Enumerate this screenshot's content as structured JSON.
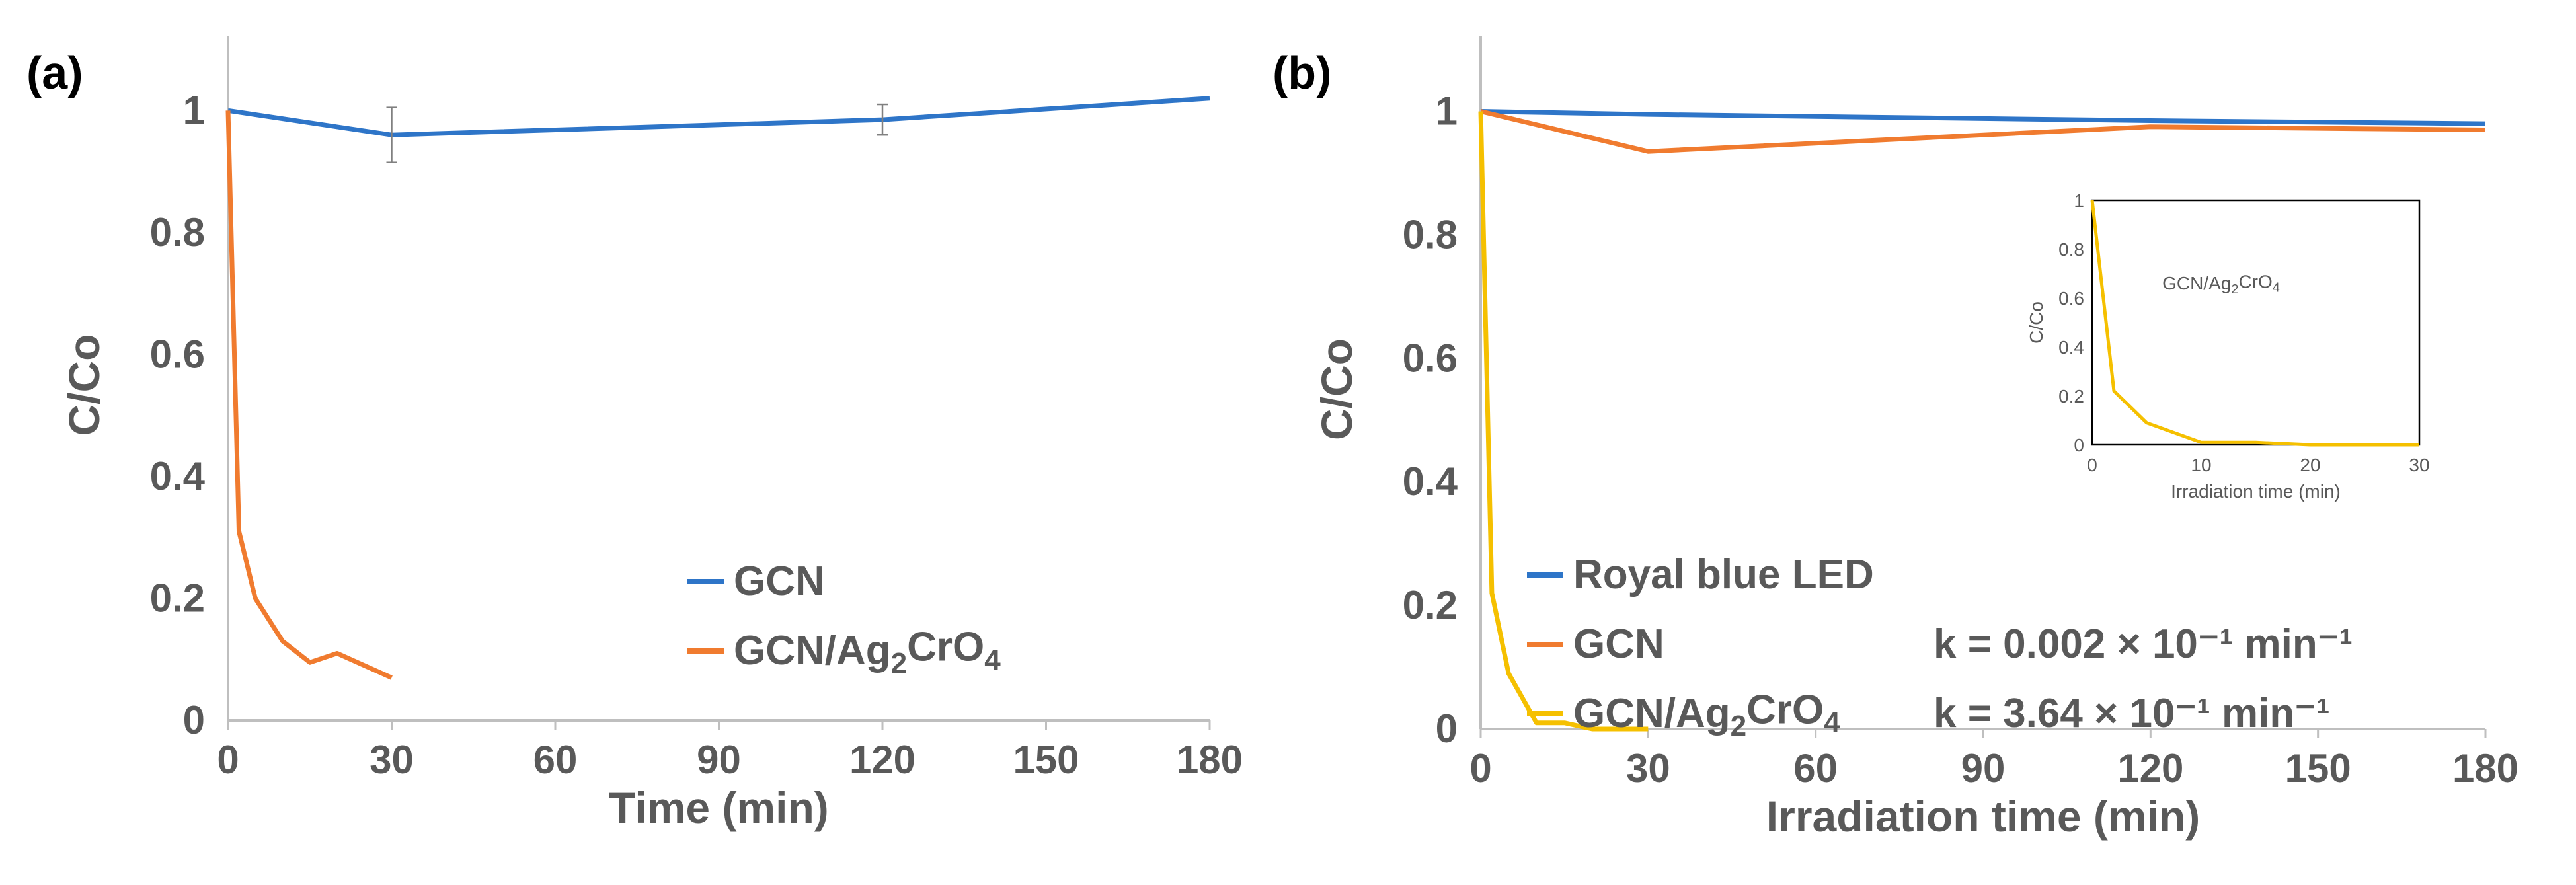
{
  "panels": {
    "a": {
      "label": "(a)"
    },
    "b": {
      "label": "(b)"
    }
  },
  "chart_data": [
    {
      "id": "a",
      "type": "line",
      "title": "",
      "xlabel": "Time (min)",
      "ylabel": "C/Co",
      "xlim": [
        0,
        180
      ],
      "ylim": [
        0,
        1.1
      ],
      "xticks": [
        0,
        30,
        60,
        90,
        120,
        150,
        180
      ],
      "yticks": [
        0,
        0.2,
        0.4,
        0.6,
        0.8,
        1
      ],
      "ytick_labels": [
        "0",
        "0.2",
        "0.4",
        "0.6",
        "0.8",
        "1"
      ],
      "grid": false,
      "legend_position": "bottom-right",
      "series": [
        {
          "name": "GCN",
          "color": "#2E75C8",
          "x": [
            0,
            30,
            120,
            180
          ],
          "y": [
            1.0,
            0.96,
            0.985,
            1.02
          ],
          "error": [
            0,
            0.045,
            0.025,
            0
          ]
        },
        {
          "name": "GCN/Ag2CrO4",
          "name_parts": [
            "GCN/Ag",
            "2",
            "CrO",
            "4"
          ],
          "color": "#F07B2F",
          "x": [
            0,
            2,
            5,
            10,
            15,
            20,
            30
          ],
          "y": [
            1.0,
            0.31,
            0.2,
            0.13,
            0.095,
            0.11,
            0.07
          ]
        }
      ]
    },
    {
      "id": "b",
      "type": "line",
      "title": "",
      "xlabel": "Irradiation time (min)",
      "ylabel": "C/Co",
      "xlim": [
        0,
        180
      ],
      "ylim": [
        0,
        1.1
      ],
      "xticks": [
        0,
        30,
        60,
        90,
        120,
        150,
        180
      ],
      "yticks": [
        0,
        0.2,
        0.4,
        0.6,
        0.8,
        1
      ],
      "ytick_labels": [
        "0",
        "0.2",
        "0.4",
        "0.6",
        "0.8",
        "1"
      ],
      "grid": false,
      "legend_position": "bottom-left",
      "series": [
        {
          "name": "Royal blue LED",
          "color": "#2E75C8",
          "x": [
            0,
            30,
            120,
            180
          ],
          "y": [
            1.0,
            0.995,
            0.985,
            0.98
          ]
        },
        {
          "name": "GCN",
          "color": "#F07B2F",
          "k": "k = 0.002 × 10⁻¹ min⁻¹",
          "x": [
            0,
            30,
            120,
            180
          ],
          "y": [
            1.0,
            0.935,
            0.975,
            0.97
          ]
        },
        {
          "name": "GCN/Ag2CrO4",
          "name_parts": [
            "GCN/Ag",
            "2",
            "CrO",
            "4"
          ],
          "color": "#F5C000",
          "k": "k = 3.64 × 10⁻¹ min⁻¹",
          "x": [
            0,
            2,
            5,
            10,
            15,
            20,
            30
          ],
          "y": [
            1.0,
            0.22,
            0.09,
            0.01,
            0.01,
            0.0,
            0.0
          ]
        }
      ],
      "inset": {
        "type": "line",
        "xlabel": "Irradiation time (min)",
        "ylabel": "C/Co",
        "annotation": "GCN/Ag2CrO4",
        "annotation_parts": [
          "GCN/Ag",
          "2",
          "CrO",
          "4"
        ],
        "xlim": [
          0,
          30
        ],
        "ylim": [
          0,
          1
        ],
        "xticks": [
          0,
          10,
          20,
          30
        ],
        "yticks": [
          0,
          0.2,
          0.4,
          0.6,
          0.8,
          1
        ],
        "ytick_labels": [
          "0",
          "0.2",
          "0.4",
          "0.6",
          "0.8",
          "1"
        ],
        "series": [
          {
            "name": "GCN/Ag2CrO4",
            "color": "#F5C000",
            "x": [
              0,
              2,
              5,
              10,
              15,
              20,
              30
            ],
            "y": [
              1.0,
              0.22,
              0.09,
              0.01,
              0.01,
              0.0,
              0.0
            ]
          }
        ]
      }
    }
  ]
}
